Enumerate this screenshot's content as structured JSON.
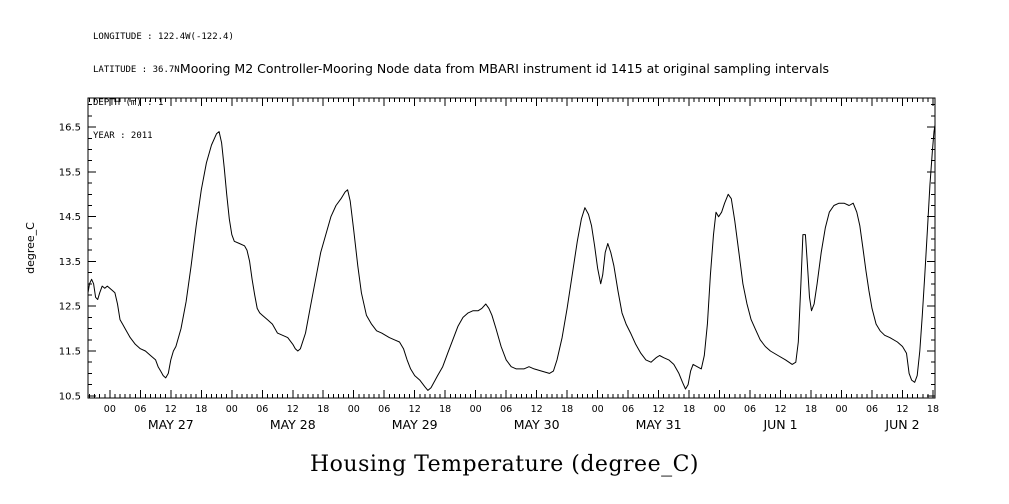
{
  "header": {
    "longitude": "LONGITUDE : 122.4W(-122.4)",
    "latitude": "LATITUDE : 36.7N",
    "depth": "DEPTH (m) : 1",
    "year": "YEAR : 2011"
  },
  "title": "Mooring M2 Controller-Mooring Node data from MBARI instrument id 1415 at original sampling intervals",
  "bottom_title": "Housing Temperature (degree_C)",
  "chart_data": {
    "type": "line",
    "title": "Mooring M2 Controller-Mooring Node data from MBARI instrument id 1415 at original sampling intervals",
    "xlabel": "Housing Temperature (degree_C)",
    "ylabel": "degree_C",
    "grid": false,
    "legend": "none",
    "ylim": [
      10.45,
      17.15
    ],
    "yticks": [
      10.5,
      11.5,
      12.5,
      13.5,
      14.5,
      15.5,
      16.5
    ],
    "y_minor_step": 0.25,
    "x_hour_origin": "MAY 27 00:00 2011",
    "xlim": [
      -4.3,
      162.4
    ],
    "x_minor_step_hours": 1,
    "xticks": [
      {
        "h": 0,
        "label": "00"
      },
      {
        "h": 6,
        "label": "06"
      },
      {
        "h": 12,
        "label": "12"
      },
      {
        "h": 18,
        "label": "18"
      },
      {
        "h": 24,
        "label": "00"
      },
      {
        "h": 30,
        "label": "06"
      },
      {
        "h": 36,
        "label": "12"
      },
      {
        "h": 42,
        "label": "18"
      },
      {
        "h": 48,
        "label": "00"
      },
      {
        "h": 54,
        "label": "06"
      },
      {
        "h": 60,
        "label": "12"
      },
      {
        "h": 66,
        "label": "18"
      },
      {
        "h": 72,
        "label": "00"
      },
      {
        "h": 78,
        "label": "06"
      },
      {
        "h": 84,
        "label": "12"
      },
      {
        "h": 90,
        "label": "18"
      },
      {
        "h": 96,
        "label": "00"
      },
      {
        "h": 102,
        "label": "06"
      },
      {
        "h": 108,
        "label": "12"
      },
      {
        "h": 114,
        "label": "18"
      },
      {
        "h": 120,
        "label": "00"
      },
      {
        "h": 126,
        "label": "06"
      },
      {
        "h": 132,
        "label": "12"
      },
      {
        "h": 138,
        "label": "18"
      },
      {
        "h": 144,
        "label": "00"
      },
      {
        "h": 150,
        "label": "06"
      },
      {
        "h": 156,
        "label": "12"
      },
      {
        "h": 162,
        "label": "18"
      }
    ],
    "day_labels": [
      {
        "label": "MAY 27",
        "h": 12
      },
      {
        "label": "MAY 28",
        "h": 36
      },
      {
        "label": "MAY 29",
        "h": 60
      },
      {
        "label": "MAY 30",
        "h": 84
      },
      {
        "label": "MAY 31",
        "h": 108
      },
      {
        "label": "JUN 1",
        "h": 132
      },
      {
        "label": "JUN 2",
        "h": 156
      }
    ],
    "series": [
      {
        "name": "Housing Temperature (degree_C)",
        "points": [
          [
            -4.3,
            12.8
          ],
          [
            -4.0,
            13.0
          ],
          [
            -3.6,
            13.1
          ],
          [
            -3.2,
            13.0
          ],
          [
            -2.8,
            12.7
          ],
          [
            -2.4,
            12.65
          ],
          [
            -2.0,
            12.8
          ],
          [
            -1.5,
            12.95
          ],
          [
            -1.0,
            12.9
          ],
          [
            -0.5,
            12.95
          ],
          [
            0.0,
            12.9
          ],
          [
            0.5,
            12.85
          ],
          [
            1.0,
            12.8
          ],
          [
            1.5,
            12.55
          ],
          [
            2.0,
            12.2
          ],
          [
            2.5,
            12.1
          ],
          [
            3.0,
            12.0
          ],
          [
            4.0,
            11.8
          ],
          [
            5.0,
            11.65
          ],
          [
            6.0,
            11.55
          ],
          [
            7.0,
            11.5
          ],
          [
            8.0,
            11.4
          ],
          [
            9.0,
            11.3
          ],
          [
            9.5,
            11.15
          ],
          [
            10.0,
            11.05
          ],
          [
            10.5,
            10.95
          ],
          [
            11.0,
            10.9
          ],
          [
            11.5,
            11.0
          ],
          [
            12.0,
            11.3
          ],
          [
            12.5,
            11.5
          ],
          [
            13.0,
            11.6
          ],
          [
            14.0,
            12.0
          ],
          [
            15.0,
            12.6
          ],
          [
            16.0,
            13.4
          ],
          [
            17.0,
            14.3
          ],
          [
            18.0,
            15.1
          ],
          [
            19.0,
            15.7
          ],
          [
            20.0,
            16.1
          ],
          [
            21.0,
            16.35
          ],
          [
            21.5,
            16.4
          ],
          [
            22.0,
            16.15
          ],
          [
            22.5,
            15.6
          ],
          [
            23.0,
            15.0
          ],
          [
            23.5,
            14.45
          ],
          [
            24.0,
            14.1
          ],
          [
            24.5,
            13.95
          ],
          [
            25.5,
            13.9
          ],
          [
            26.5,
            13.85
          ],
          [
            27.0,
            13.75
          ],
          [
            27.5,
            13.5
          ],
          [
            28.0,
            13.1
          ],
          [
            28.5,
            12.75
          ],
          [
            29.0,
            12.45
          ],
          [
            29.5,
            12.35
          ],
          [
            30.0,
            12.3
          ],
          [
            31.0,
            12.2
          ],
          [
            32.0,
            12.1
          ],
          [
            33.0,
            11.9
          ],
          [
            34.0,
            11.85
          ],
          [
            35.0,
            11.8
          ],
          [
            36.0,
            11.65
          ],
          [
            36.5,
            11.55
          ],
          [
            37.0,
            11.5
          ],
          [
            37.5,
            11.55
          ],
          [
            38.5,
            11.9
          ],
          [
            39.5,
            12.5
          ],
          [
            40.5,
            13.1
          ],
          [
            41.5,
            13.7
          ],
          [
            42.5,
            14.1
          ],
          [
            43.5,
            14.5
          ],
          [
            44.5,
            14.75
          ],
          [
            45.5,
            14.9
          ],
          [
            46.3,
            15.05
          ],
          [
            46.8,
            15.1
          ],
          [
            47.3,
            14.85
          ],
          [
            48.0,
            14.2
          ],
          [
            48.8,
            13.4
          ],
          [
            49.5,
            12.8
          ],
          [
            50.5,
            12.3
          ],
          [
            51.5,
            12.1
          ],
          [
            52.5,
            11.95
          ],
          [
            53.5,
            11.9
          ],
          [
            55.0,
            11.8
          ],
          [
            56.0,
            11.75
          ],
          [
            57.0,
            11.7
          ],
          [
            57.8,
            11.55
          ],
          [
            58.5,
            11.3
          ],
          [
            59.2,
            11.1
          ],
          [
            60.0,
            10.95
          ],
          [
            61.0,
            10.85
          ],
          [
            62.0,
            10.7
          ],
          [
            62.6,
            10.62
          ],
          [
            63.2,
            10.68
          ],
          [
            63.8,
            10.8
          ],
          [
            64.5,
            10.95
          ],
          [
            65.5,
            11.15
          ],
          [
            66.5,
            11.45
          ],
          [
            67.5,
            11.75
          ],
          [
            68.5,
            12.05
          ],
          [
            69.5,
            12.25
          ],
          [
            70.5,
            12.35
          ],
          [
            71.5,
            12.4
          ],
          [
            72.5,
            12.4
          ],
          [
            73.2,
            12.45
          ],
          [
            74.0,
            12.55
          ],
          [
            74.6,
            12.45
          ],
          [
            75.2,
            12.3
          ],
          [
            76.0,
            12.0
          ],
          [
            77.0,
            11.6
          ],
          [
            78.0,
            11.3
          ],
          [
            79.0,
            11.15
          ],
          [
            80.0,
            11.1
          ],
          [
            81.5,
            11.1
          ],
          [
            82.5,
            11.15
          ],
          [
            83.5,
            11.1
          ],
          [
            85.0,
            11.05
          ],
          [
            86.5,
            11.0
          ],
          [
            87.3,
            11.05
          ],
          [
            88.0,
            11.3
          ],
          [
            89.0,
            11.8
          ],
          [
            90.0,
            12.45
          ],
          [
            91.0,
            13.2
          ],
          [
            92.0,
            13.95
          ],
          [
            92.8,
            14.45
          ],
          [
            93.5,
            14.7
          ],
          [
            94.2,
            14.55
          ],
          [
            94.8,
            14.3
          ],
          [
            95.4,
            13.85
          ],
          [
            96.0,
            13.35
          ],
          [
            96.6,
            13.0
          ],
          [
            97.0,
            13.2
          ],
          [
            97.5,
            13.7
          ],
          [
            98.0,
            13.9
          ],
          [
            98.6,
            13.7
          ],
          [
            99.2,
            13.4
          ],
          [
            100.0,
            12.85
          ],
          [
            100.8,
            12.35
          ],
          [
            101.6,
            12.1
          ],
          [
            102.5,
            11.9
          ],
          [
            103.5,
            11.65
          ],
          [
            104.5,
            11.45
          ],
          [
            105.5,
            11.3
          ],
          [
            106.5,
            11.25
          ],
          [
            107.5,
            11.35
          ],
          [
            108.2,
            11.4
          ],
          [
            109.0,
            11.35
          ],
          [
            110.0,
            11.3
          ],
          [
            111.0,
            11.2
          ],
          [
            112.0,
            11.0
          ],
          [
            112.7,
            10.8
          ],
          [
            113.3,
            10.65
          ],
          [
            113.8,
            10.75
          ],
          [
            114.3,
            11.05
          ],
          [
            114.8,
            11.2
          ],
          [
            115.6,
            11.15
          ],
          [
            116.4,
            11.1
          ],
          [
            117.0,
            11.4
          ],
          [
            117.6,
            12.1
          ],
          [
            118.2,
            13.2
          ],
          [
            118.8,
            14.1
          ],
          [
            119.3,
            14.6
          ],
          [
            119.8,
            14.5
          ],
          [
            120.4,
            14.6
          ],
          [
            121.0,
            14.8
          ],
          [
            121.7,
            15.0
          ],
          [
            122.3,
            14.9
          ],
          [
            123.0,
            14.4
          ],
          [
            123.8,
            13.7
          ],
          [
            124.6,
            13.0
          ],
          [
            125.4,
            12.55
          ],
          [
            126.2,
            12.2
          ],
          [
            127.0,
            12.0
          ],
          [
            128.0,
            11.75
          ],
          [
            129.0,
            11.6
          ],
          [
            130.0,
            11.5
          ],
          [
            131.5,
            11.4
          ],
          [
            133.0,
            11.3
          ],
          [
            134.3,
            11.2
          ],
          [
            135.0,
            11.25
          ],
          [
            135.5,
            11.7
          ],
          [
            136.0,
            13.0
          ],
          [
            136.4,
            14.1
          ],
          [
            136.9,
            14.1
          ],
          [
            137.3,
            13.4
          ],
          [
            137.7,
            12.7
          ],
          [
            138.1,
            12.4
          ],
          [
            138.6,
            12.55
          ],
          [
            139.2,
            13.0
          ],
          [
            140.0,
            13.7
          ],
          [
            140.8,
            14.25
          ],
          [
            141.6,
            14.6
          ],
          [
            142.5,
            14.75
          ],
          [
            143.5,
            14.8
          ],
          [
            144.5,
            14.8
          ],
          [
            145.5,
            14.75
          ],
          [
            146.3,
            14.8
          ],
          [
            147.0,
            14.6
          ],
          [
            147.6,
            14.3
          ],
          [
            148.2,
            13.8
          ],
          [
            148.8,
            13.3
          ],
          [
            149.4,
            12.85
          ],
          [
            150.0,
            12.45
          ],
          [
            150.8,
            12.1
          ],
          [
            151.6,
            11.95
          ],
          [
            152.5,
            11.85
          ],
          [
            153.5,
            11.8
          ],
          [
            155.0,
            11.7
          ],
          [
            156.0,
            11.6
          ],
          [
            156.8,
            11.45
          ],
          [
            157.3,
            11.0
          ],
          [
            157.8,
            10.85
          ],
          [
            158.4,
            10.8
          ],
          [
            158.9,
            10.95
          ],
          [
            159.4,
            11.5
          ],
          [
            159.9,
            12.3
          ],
          [
            160.4,
            13.2
          ],
          [
            160.9,
            14.2
          ],
          [
            161.4,
            15.2
          ],
          [
            161.9,
            16.0
          ],
          [
            162.2,
            16.4
          ],
          [
            162.4,
            16.55
          ]
        ]
      }
    ]
  }
}
